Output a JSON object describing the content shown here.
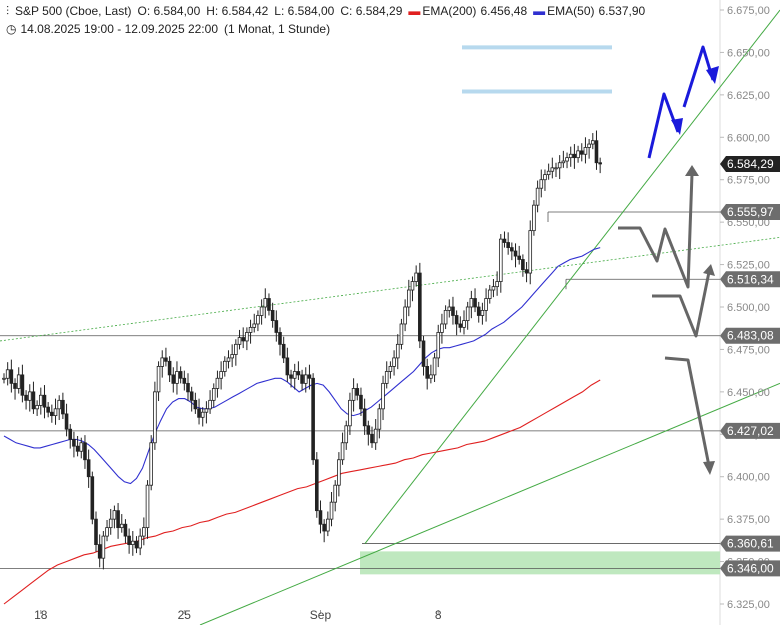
{
  "header": {
    "symbol": "S&P 500 (Cboe, Last)",
    "open": "O: 6.584,00",
    "high": "H: 6.584,42",
    "low": "L: 6.584,00",
    "close": "C: 6.584,29",
    "ema200_label": "EMA(200)",
    "ema200_value": "6.456,48",
    "ema50_label": "EMA(50)",
    "ema50_value": "6.537,90",
    "range": "14.08.2025 19:00 - 12.09.2025 22:00",
    "period": "(1 Monat, 1 Stunde)"
  },
  "colors": {
    "ema200": "#e02020",
    "ema50": "#3030d0",
    "trend": "#44aa44",
    "forecast_blue": "#1a1adb",
    "forecast_gray": "#666666",
    "target_band": "#b7d9ee",
    "support_zone": "#bfe8bf",
    "level_tag": "#6d6d6d",
    "price_tag": "#222222"
  },
  "chart_data": {
    "type": "line",
    "ylim": [
      6325,
      6675
    ],
    "yticks": [
      "6.325,00",
      "6.350,00",
      "6.375,00",
      "6.400,00",
      "6.425,00",
      "6.450,00",
      "6.475,00",
      "6.500,00",
      "6.525,00",
      "6.550,00",
      "6.575,00",
      "6.600,00",
      "6.625,00",
      "6.650,00",
      "6.675,00"
    ],
    "ytick_values": [
      6325,
      6350,
      6375,
      6400,
      6425,
      6450,
      6475,
      6500,
      6525,
      6550,
      6575,
      6600,
      6625,
      6650,
      6675
    ],
    "xticks": [
      "18",
      "25",
      "Sep",
      "8"
    ],
    "xtick_index": [
      10,
      49,
      86,
      118
    ],
    "bars_total": 170,
    "close": [
      6458,
      6463,
      6455,
      6452,
      6460,
      6448,
      6445,
      6450,
      6440,
      6442,
      6448,
      6441,
      6438,
      6436,
      6440,
      6445,
      6437,
      6428,
      6422,
      6418,
      6415,
      6420,
      6410,
      6400,
      6375,
      6360,
      6352,
      6365,
      6370,
      6375,
      6380,
      6370,
      6372,
      6365,
      6360,
      6362,
      6358,
      6365,
      6370,
      6395,
      6420,
      6450,
      6465,
      6470,
      6468,
      6460,
      6455,
      6462,
      6458,
      6455,
      6450,
      6445,
      6440,
      6435,
      6438,
      6440,
      6445,
      6452,
      6458,
      6462,
      6468,
      6470,
      6472,
      6478,
      6482,
      6480,
      6485,
      6488,
      6490,
      6495,
      6500,
      6505,
      6498,
      6492,
      6485,
      6478,
      6470,
      6460,
      6458,
      6462,
      6460,
      6455,
      6460,
      6458,
      6410,
      6380,
      6372,
      6368,
      6375,
      6385,
      6395,
      6410,
      6420,
      6430,
      6445,
      6452,
      6448,
      6440,
      6430,
      6425,
      6420,
      6428,
      6440,
      6455,
      6462,
      6465,
      6470,
      6478,
      6490,
      6500,
      6510,
      6515,
      6520,
      6480,
      6465,
      6458,
      6460,
      6470,
      6485,
      6490,
      6498,
      6500,
      6495,
      6490,
      6488,
      6492,
      6500,
      6505,
      6500,
      6495,
      6498,
      6505,
      6510,
      6512,
      6515,
      6540,
      6538,
      6535,
      6533,
      6530,
      6528,
      6522,
      6520,
      6545,
      6560,
      6570,
      6575,
      6578,
      6580,
      6582,
      6582,
      6585,
      6586,
      6588,
      6590,
      6588,
      6592,
      6590,
      6594,
      6596,
      6598,
      6585,
      6584.29
    ],
    "ema50": [
      6424,
      6422,
      6420,
      6419,
      6418,
      6417,
      6417,
      6418,
      6419,
      6420,
      6421,
      6422,
      6422,
      6421,
      6419,
      6416,
      6412,
      6408,
      6404,
      6400,
      6397,
      6396,
      6399,
      6405,
      6415,
      6425,
      6433,
      6440,
      6444,
      6446,
      6446,
      6444,
      6441,
      6440,
      6440,
      6441,
      6443,
      6445,
      6447,
      6449,
      6451,
      6453,
      6455,
      6456,
      6457,
      6458,
      6458,
      6456,
      6453,
      6450,
      6452,
      6454,
      6455,
      6454,
      6450,
      6445,
      6440,
      6437,
      6436,
      6437,
      6439,
      6441,
      6444,
      6447,
      6450,
      6453,
      6456,
      6459,
      6462,
      6466,
      6470,
      6473,
      6475,
      6476,
      6476,
      6477,
      6478,
      6479,
      6480,
      6482,
      6484,
      6487,
      6489,
      6491,
      6494,
      6497,
      6500,
      6504,
      6508,
      6512,
      6516,
      6520,
      6524,
      6526,
      6528,
      6529,
      6530,
      6532,
      6534,
      6535
    ],
    "ema50_start": 0,
    "ema200": [
      6325,
      6329,
      6333,
      6337,
      6341,
      6345,
      6348,
      6350,
      6352,
      6354,
      6355,
      6357,
      6359,
      6360,
      6361,
      6362,
      6364,
      6365,
      6367,
      6368,
      6370,
      6371,
      6373,
      6374,
      6376,
      6378,
      6379,
      6381,
      6383,
      6385,
      6387,
      6389,
      6391,
      6393,
      6394,
      6396,
      6398,
      6400,
      6402,
      6403,
      6404,
      6405,
      6406,
      6407,
      6408,
      6410,
      6411,
      6413,
      6414,
      6415,
      6416,
      6417,
      6419,
      6420,
      6421,
      6423,
      6425,
      6427,
      6429,
      6432,
      6435,
      6438,
      6441,
      6444,
      6447,
      6450,
      6454,
      6457
    ],
    "ema200_start": 0,
    "levels": [
      {
        "value": 6555.97,
        "label": "6.555,97"
      },
      {
        "value": 6516.34,
        "label": "6.516,34"
      },
      {
        "value": 6483.08,
        "label": "6.483,08"
      },
      {
        "value": 6427.02,
        "label": "6.427,02"
      },
      {
        "value": 6360.61,
        "label": "6.360,61"
      },
      {
        "value": 6346.0,
        "label": "6.346,00"
      }
    ],
    "last_price": {
      "value": 6584.29,
      "label": "6.584,29"
    },
    "target_bands": [
      6653,
      6627
    ],
    "support_zone": [
      6346,
      6356
    ]
  }
}
